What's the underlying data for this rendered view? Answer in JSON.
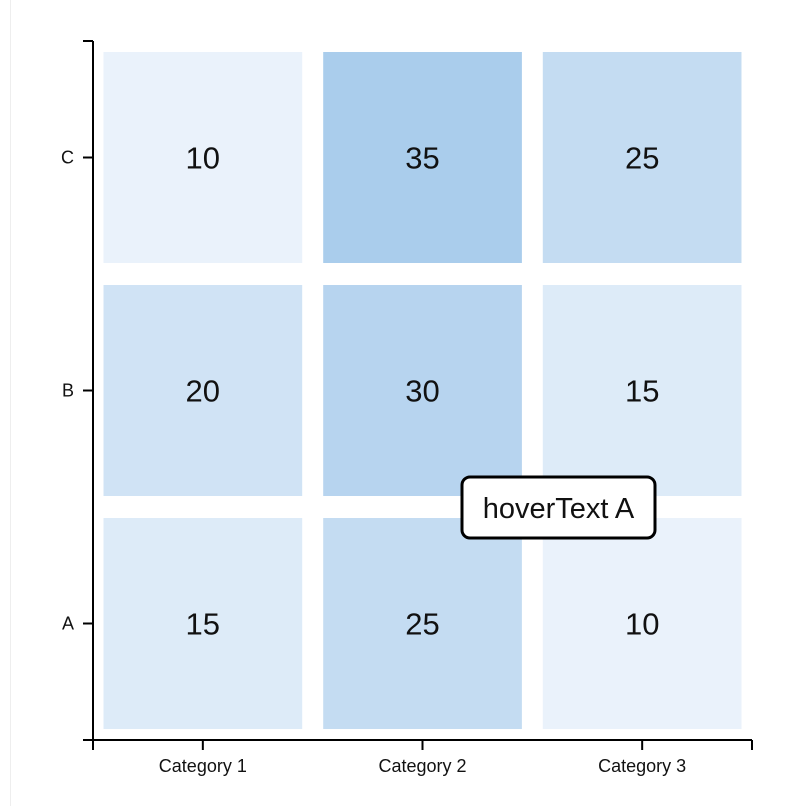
{
  "chart_data": {
    "type": "heatmap",
    "x_categories": [
      "Category 1",
      "Category 2",
      "Category 3"
    ],
    "y_categories": [
      "A",
      "B",
      "C"
    ],
    "values": [
      [
        15,
        25,
        10
      ],
      [
        20,
        30,
        15
      ],
      [
        10,
        35,
        25
      ]
    ],
    "color_range": [
      "#eaf2fb",
      "#aacdec"
    ],
    "tooltip": {
      "text": "hoverText A",
      "category": "Category 2",
      "row": "A"
    }
  }
}
